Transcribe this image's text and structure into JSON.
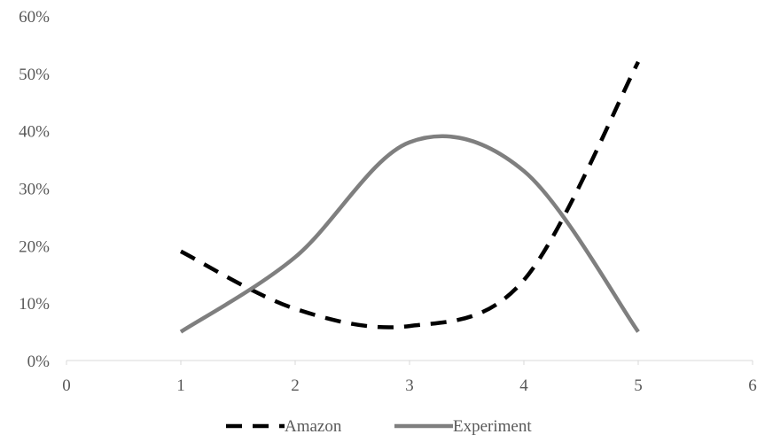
{
  "chart_data": {
    "type": "line",
    "title": "",
    "xlabel": "",
    "ylabel": "",
    "xlim": [
      0,
      6
    ],
    "ylim": [
      0,
      0.6
    ],
    "x_ticks": [
      0,
      1,
      2,
      3,
      4,
      5,
      6
    ],
    "x_tick_labels": [
      "0",
      "1",
      "2",
      "3",
      "4",
      "5",
      "6"
    ],
    "y_ticks": [
      0,
      0.1,
      0.2,
      0.3,
      0.4,
      0.5,
      0.6
    ],
    "y_tick_labels": [
      "0%",
      "10%",
      "20%",
      "30%",
      "40%",
      "50%",
      "60%"
    ],
    "grid": false,
    "legend_position": "bottom",
    "series": [
      {
        "name": "Amazon",
        "color": "#000000",
        "style": "dashed",
        "x": [
          1,
          2,
          3,
          4,
          5
        ],
        "values": [
          0.19,
          0.09,
          0.06,
          0.14,
          0.52
        ]
      },
      {
        "name": "Experiment",
        "color": "#7f7f7f",
        "style": "solid",
        "x": [
          1,
          2,
          3,
          4,
          5
        ],
        "values": [
          0.05,
          0.18,
          0.38,
          0.33,
          0.05
        ]
      }
    ]
  }
}
